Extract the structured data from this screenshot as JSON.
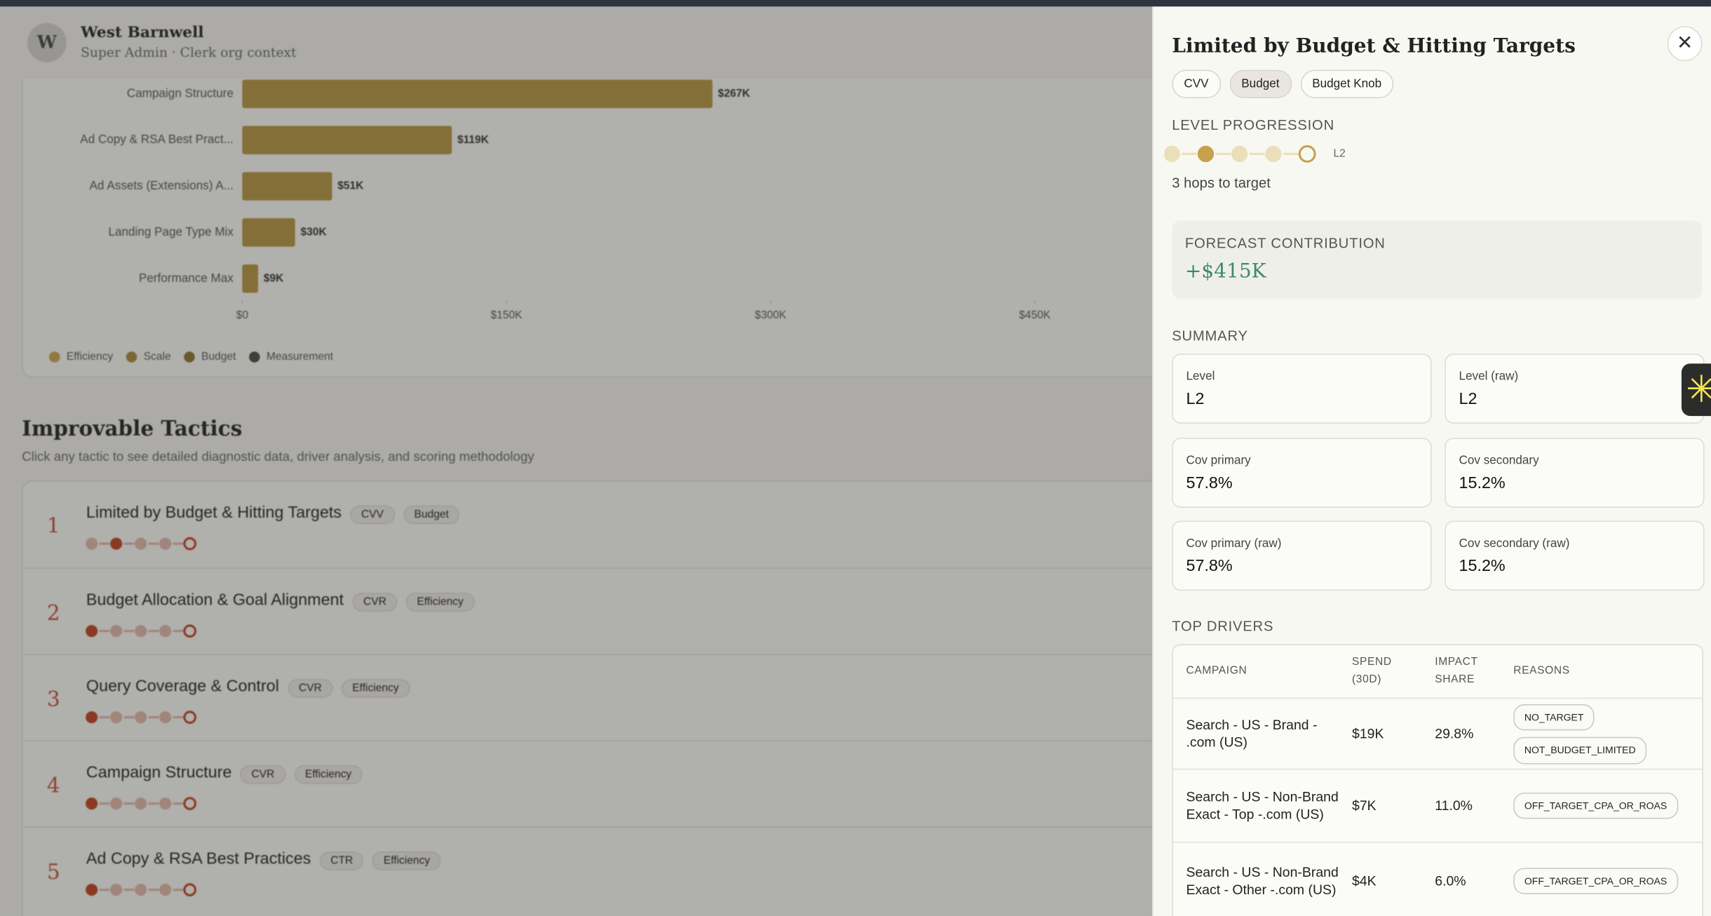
{
  "header": {
    "avatar": "W",
    "name": "West Barnwell",
    "role": "Super Admin · Clerk org context"
  },
  "chart_data": {
    "type": "bar",
    "orientation": "horizontal",
    "categories": [
      "Campaign Structure",
      "Ad Copy & RSA Best Pract...",
      "Ad Assets (Extensions) A...",
      "Landing Page Type Mix",
      "Performance Max"
    ],
    "values": [
      267000,
      119000,
      51000,
      30000,
      9000
    ],
    "value_labels": [
      "$267K",
      "$119K",
      "$51K",
      "$30K",
      "$9K"
    ],
    "color": "#b8953f",
    "xlim": [
      0,
      500000
    ],
    "xticks": [
      {
        "value": 0,
        "label": "$0"
      },
      {
        "value": 150000,
        "label": "$150K"
      },
      {
        "value": 300000,
        "label": "$300K"
      },
      {
        "value": 450000,
        "label": "$450K"
      }
    ],
    "legend": [
      {
        "name": "Efficiency",
        "color": "#c9a64c"
      },
      {
        "name": "Scale",
        "color": "#a98a3c"
      },
      {
        "name": "Budget",
        "color": "#8b7233"
      },
      {
        "name": "Measurement",
        "color": "#4f4a3c"
      }
    ]
  },
  "tactics": {
    "title": "Improvable Tactics",
    "subtitle": "Click any tactic to see detailed diagnostic data, driver analysis, and scoring methodology",
    "steps": 5,
    "items": [
      {
        "rank": 1,
        "name": "Limited by Budget & Hitting Targets",
        "tags": [
          "CVV",
          "Budget"
        ],
        "step": 2
      },
      {
        "rank": 2,
        "name": "Budget Allocation & Goal Alignment",
        "tags": [
          "CVR",
          "Efficiency"
        ],
        "step": 1
      },
      {
        "rank": 3,
        "name": "Query Coverage & Control",
        "tags": [
          "CVR",
          "Efficiency"
        ],
        "step": 1
      },
      {
        "rank": 4,
        "name": "Campaign Structure",
        "tags": [
          "CVR",
          "Efficiency"
        ],
        "step": 1
      },
      {
        "rank": 5,
        "name": "Ad Copy & RSA Best Practices",
        "tags": [
          "CTR",
          "Efficiency"
        ],
        "step": 1
      }
    ]
  },
  "panel": {
    "title": "Limited by Budget & Hitting Targets",
    "chips": [
      "CVV",
      "Budget",
      "Budget Knob"
    ],
    "active_chip": 1,
    "progression": {
      "label": "LEVEL PROGRESSION",
      "step": 2,
      "steps": 5,
      "level": "L2",
      "note": "3 hops to target"
    },
    "forecast": {
      "label": "FORECAST CONTRIBUTION",
      "value": "+$415K"
    },
    "summary": {
      "label": "SUMMARY",
      "items": [
        {
          "label": "Level",
          "value": "L2"
        },
        {
          "label": "Level (raw)",
          "value": "L2"
        },
        {
          "label": "Cov primary",
          "value": "57.8%"
        },
        {
          "label": "Cov secondary",
          "value": "15.2%"
        },
        {
          "label": "Cov primary (raw)",
          "value": "57.8%"
        },
        {
          "label": "Cov secondary (raw)",
          "value": "15.2%"
        }
      ]
    },
    "drivers": {
      "label": "TOP DRIVERS",
      "columns": [
        "CAMPAIGN",
        "SPEND (30D)",
        "IMPACT SHARE",
        "REASONS"
      ],
      "rows": [
        {
          "campaign": "Search - US - Brand - .com (US)",
          "spend": "$19K",
          "share": "29.8%",
          "reasons": [
            "NO_TARGET",
            "NOT_BUDGET_LIMITED"
          ]
        },
        {
          "campaign": "Search - US - Non-Brand Exact - Top -.com (US)",
          "spend": "$7K",
          "share": "11.0%",
          "reasons": [
            "OFF_TARGET_CPA_OR_ROAS"
          ]
        },
        {
          "campaign": "Search - US - Non-Brand Exact - Other -.com (US)",
          "spend": "$4K",
          "share": "6.0%",
          "reasons": [
            "OFF_TARGET_CPA_OR_ROAS"
          ]
        }
      ]
    }
  }
}
